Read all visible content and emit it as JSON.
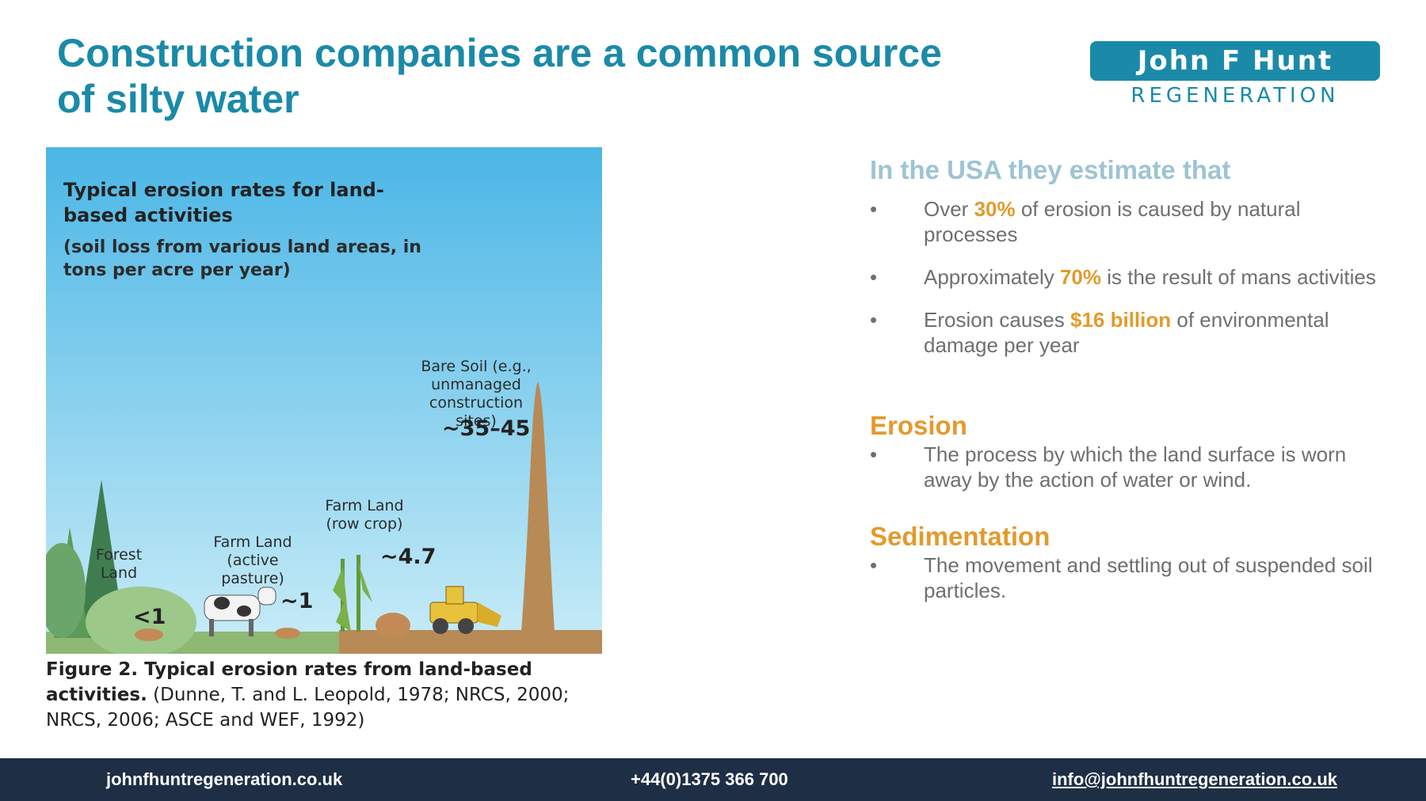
{
  "title": "Construction companies are a common source of silty water",
  "logo": {
    "top": "John F Hunt",
    "bottom": "REGENERATION"
  },
  "figure": {
    "heading": "Typical erosion rates for land-based activities",
    "subheading": "(soil loss from various land areas, in tons per acre per year)",
    "categories": [
      {
        "label": "Forest Land",
        "value": "<1"
      },
      {
        "label": "Farm Land (active pasture)",
        "value": "~1"
      },
      {
        "label": "Farm Land (row crop)",
        "value": "~4.7"
      },
      {
        "label": "Bare Soil (e.g., unmanaged construction sites)",
        "value": "~35–45"
      }
    ],
    "caption_bold": "Figure 2. Typical erosion rates from land-based activities.",
    "caption_rest": "(Dunne, T. and L. Leopold, 1978; NRCS, 2000; NRCS, 2006; ASCE and WEF, 1992)",
    "colors": {
      "sky_top": "#4bb6e6",
      "sky_bottom": "#c9ecf7",
      "soil": "#b88a55"
    }
  },
  "content": {
    "intro": "In the USA they estimate that",
    "bullets": [
      {
        "pre": "Over ",
        "highlight": "30%",
        "post": " of erosion is caused by natural processes"
      },
      {
        "pre": "Approximately ",
        "highlight": "70%",
        "post": " is the result of mans activities"
      },
      {
        "pre": "Erosion causes ",
        "highlight": "$16 billion",
        "post": " of environmental damage per year"
      }
    ],
    "erosion": {
      "heading": "Erosion",
      "text": "The process by which the land surface is worn away by the action of water or wind."
    },
    "sedimentation": {
      "heading": "Sedimentation",
      "text": "The movement and settling out of suspended soil particles."
    },
    "bullet_char": "•"
  },
  "footer": {
    "website": "johnfhuntregeneration.co.uk",
    "phone": "+44(0)1375 366 700",
    "email": "info@johnfhuntregeneration.co.uk"
  },
  "colors": {
    "title": "#1a8aa8",
    "accent": "#e39a2c",
    "intro": "#9dc4d4",
    "footer_bg": "#1e2e45"
  }
}
